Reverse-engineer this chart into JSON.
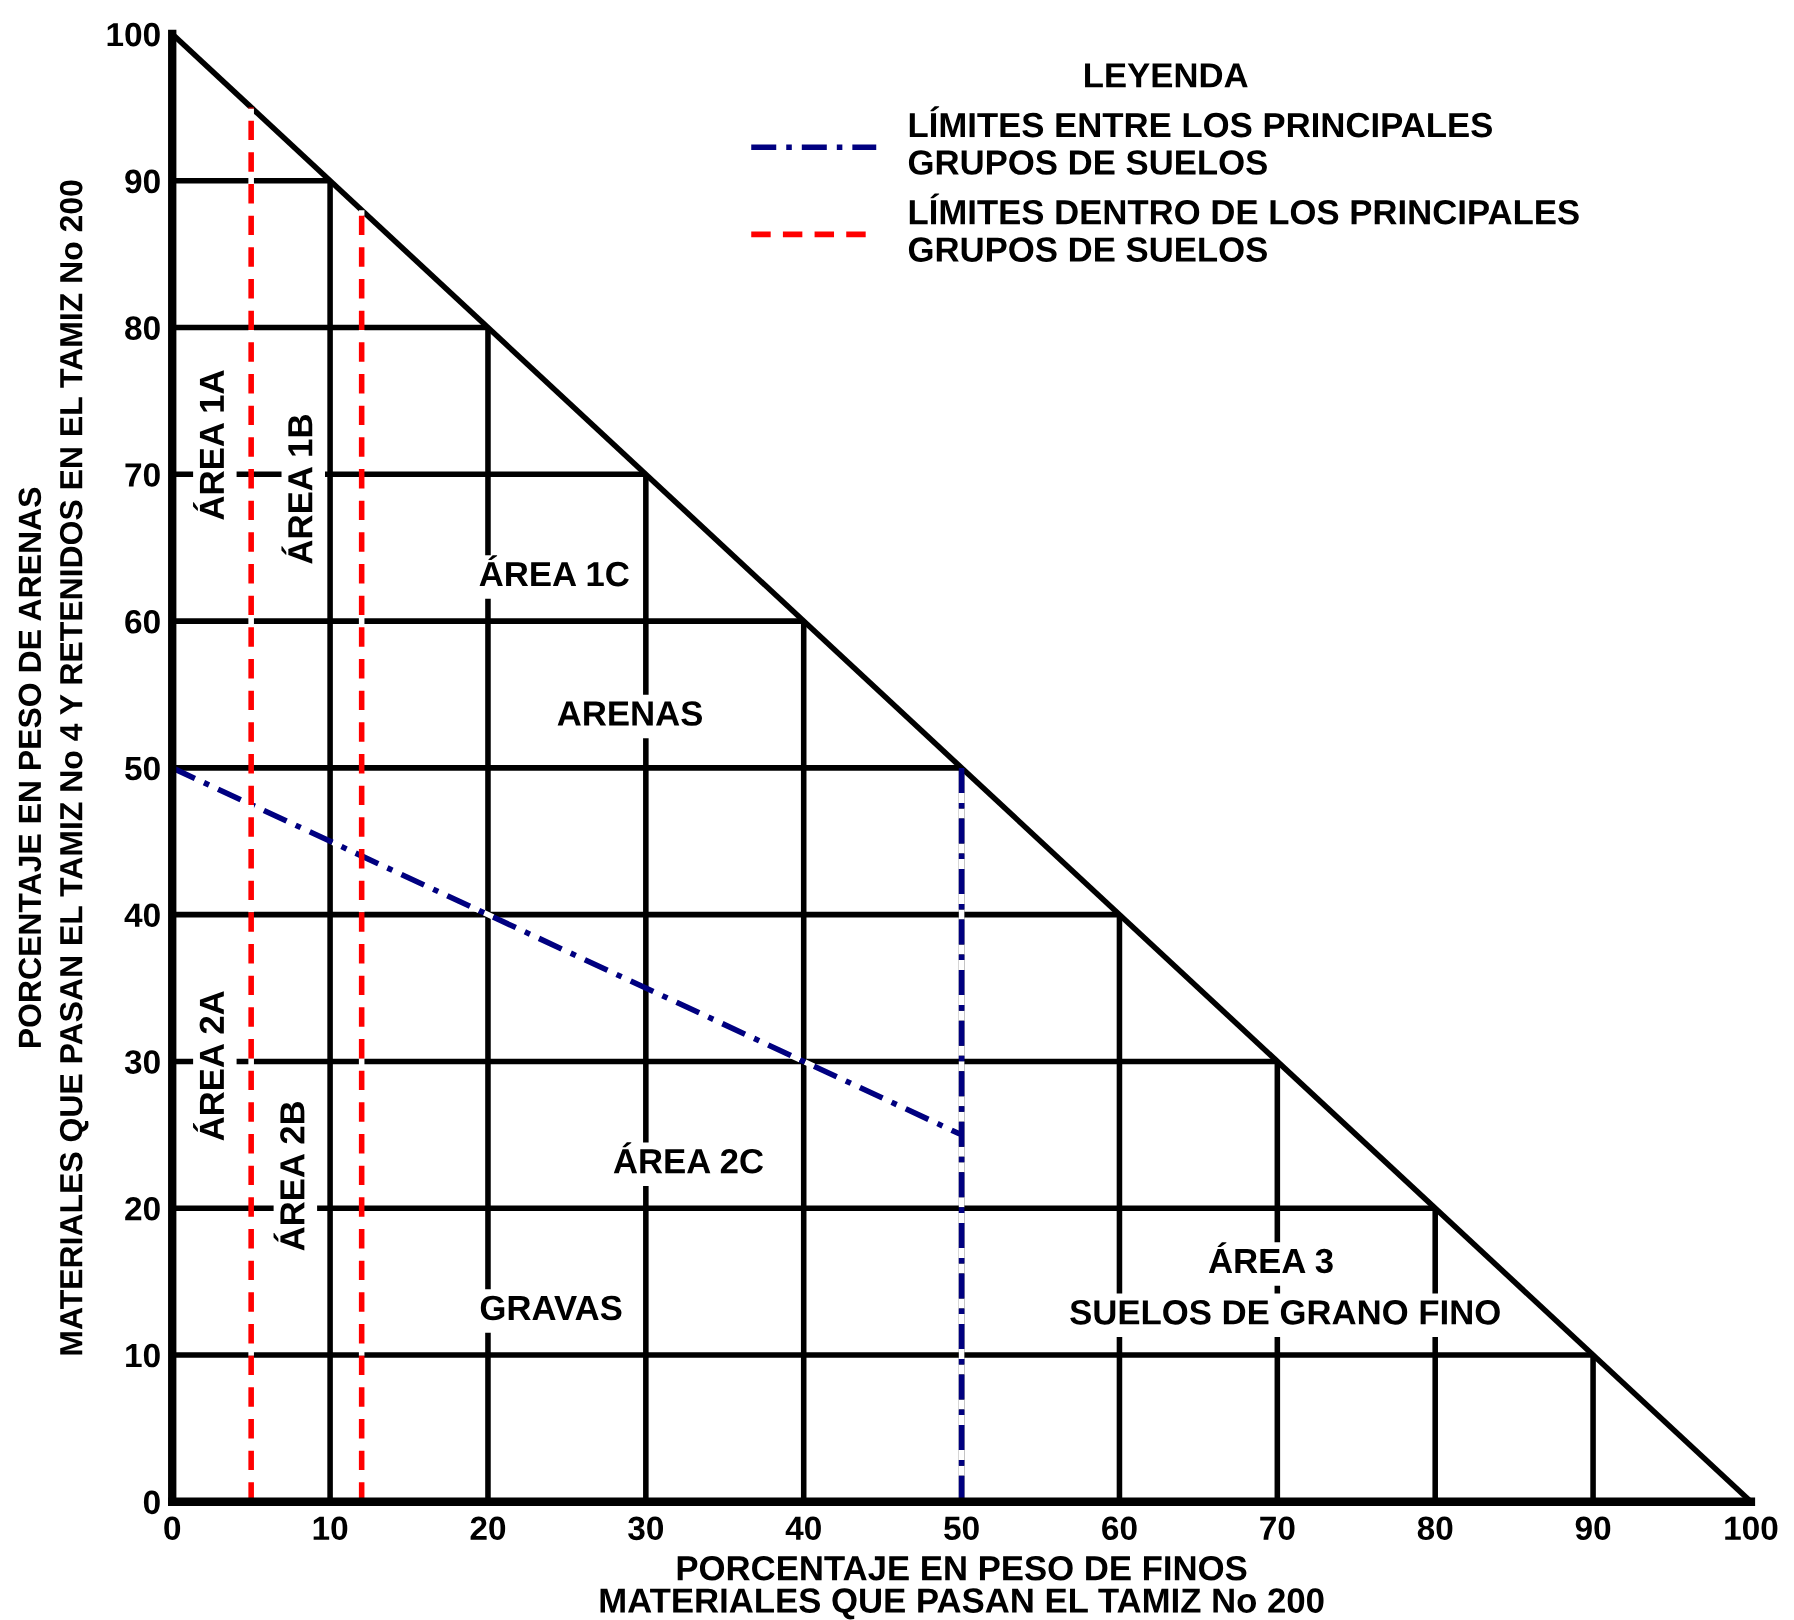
{
  "chart_data": {
    "type": "line",
    "xlabel": "PORCENTAJE EN PESO DE FINOS\nMATERIALES QUE PASAN EL TAMIZ No 200",
    "ylabel": "PORCENTAJE EN PESO DE ARENAS\nMATERIALES QUE PASAN EL TAMIZ No 4 Y RETENIDOS EN EL TAMIZ No 200",
    "legend_title": "LEYENDA",
    "xlim": [
      0,
      100
    ],
    "ylim": [
      0,
      100
    ],
    "xticks": [
      0,
      10,
      20,
      30,
      40,
      50,
      60,
      70,
      80,
      90,
      100
    ],
    "yticks": [
      0,
      10,
      20,
      30,
      40,
      50,
      60,
      70,
      80,
      90,
      100
    ],
    "grid": true,
    "legend": "top right",
    "series": [
      {
        "x": [
          0,
          100
        ],
        "values": [
          100,
          0
        ],
        "color": "#000000",
        "line_style": "solid"
      },
      {
        "name": "LÍMITES ENTRE LOS PRINCIPALES\nGRUPOS DE SUELOS",
        "x": [
          0,
          50,
          null,
          50,
          50
        ],
        "values": [
          50,
          25,
          null,
          50,
          0
        ],
        "color": "#000080",
        "line_style": "dashdot"
      },
      {
        "name": "LÍMITES DENTRO DE LOS PRINCIPALES\nGRUPOS DE SUELOS",
        "x": [
          5,
          5,
          null,
          12,
          12
        ],
        "values": [
          0,
          95,
          null,
          0,
          88
        ],
        "color": "#ff0000",
        "line_style": "dashed"
      }
    ],
    "annotations": [
      "ÁREA 1A",
      "ÁREA 1B",
      "ÁREA 1C",
      "ARENAS",
      "ÁREA 2A",
      "ÁREA 2B",
      "ÁREA 2C",
      "GRAVAS",
      "ÁREA 3",
      "SUELOS DE GRANO FINO"
    ]
  }
}
